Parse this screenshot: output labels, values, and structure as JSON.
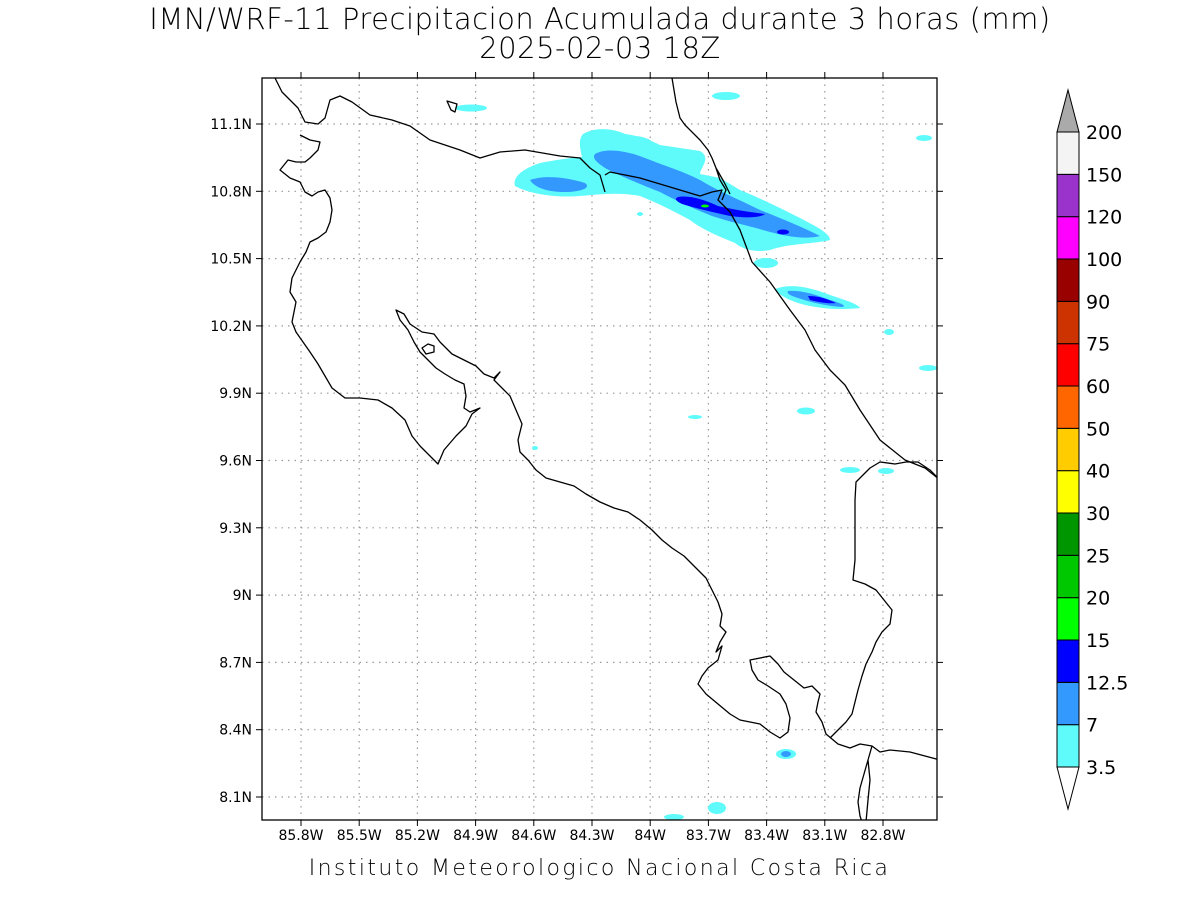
{
  "title": {
    "line1": "IMN/WRF-11 Precipitacion Acumulada durante 3 horas (mm)",
    "line2": "2025-02-03 18Z"
  },
  "footer": "Instituto Meteorologico Nacional Costa Rica",
  "map": {
    "lat_labels": [
      "11.1N",
      "10.8N",
      "10.5N",
      "10.2N",
      "9.9N",
      "9.6N",
      "9.3N",
      "9N",
      "8.7N",
      "8.4N",
      "8.1N"
    ],
    "lon_labels": [
      "85.8W",
      "85.5W",
      "85.2W",
      "84.9W",
      "84.6W",
      "84.3W",
      "84W",
      "83.7W",
      "83.4W",
      "83.1W",
      "82.8W"
    ],
    "grid": "dotted"
  },
  "colorbar": {
    "labels": [
      "3.5",
      "7",
      "12.5",
      "15",
      "20",
      "25",
      "30",
      "40",
      "50",
      "60",
      "75",
      "90",
      "100",
      "120",
      "150",
      "200"
    ],
    "colors": [
      "#5ffbfb",
      "#3399ff",
      "#0000ff",
      "#00ff00",
      "#00c800",
      "#009600",
      "#ffff00",
      "#ffcc00",
      "#ff6600",
      "#ff0000",
      "#cc3300",
      "#990000",
      "#ff00ff",
      "#9933cc",
      "#f4f4f4"
    ],
    "over_color": "#aaaaaa",
    "under_color": "#ffffff"
  }
}
